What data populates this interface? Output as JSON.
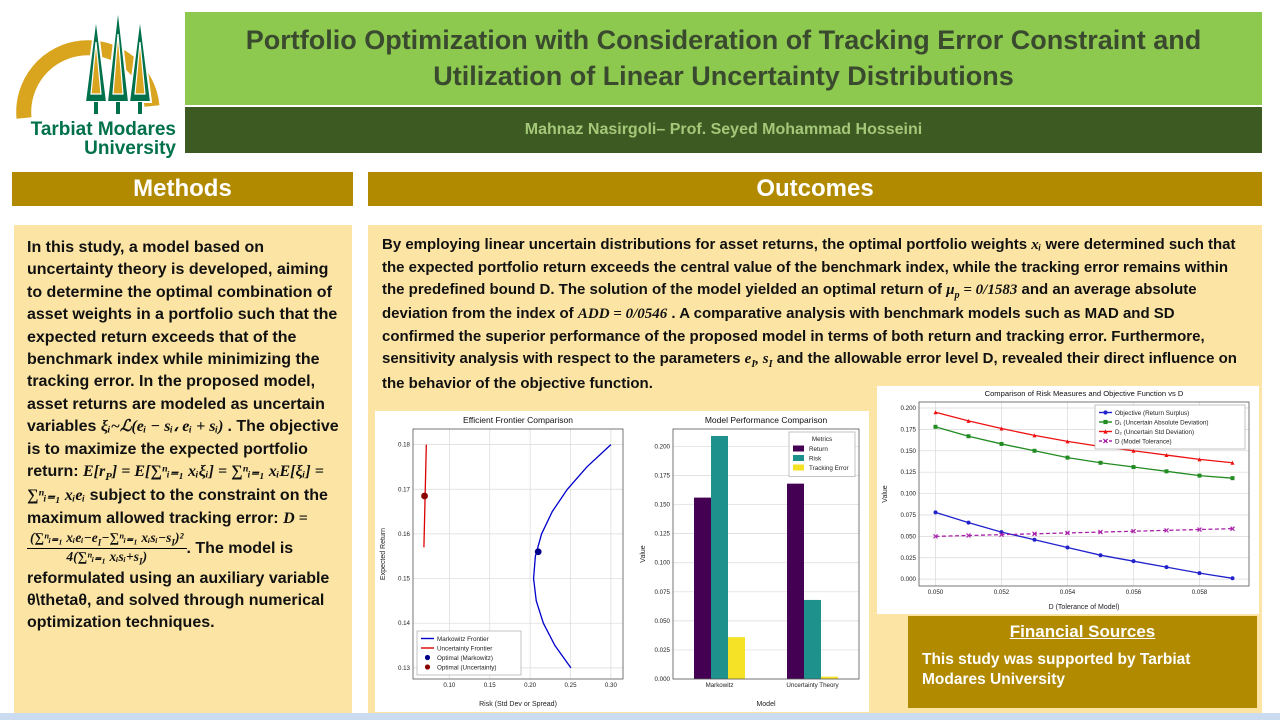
{
  "header": {
    "title_line1": "Portfolio Optimization with Consideration of Tracking Error Constraint and",
    "title_line2": "Utilization of Linear Uncertainty Distributions",
    "authors": "Mahnaz Nasirgoli– Prof. Seyed Mohammad Hosseini",
    "logo_line1": "Tarbiat Modares",
    "logo_line2": "University"
  },
  "colors": {
    "title_band": "#8dc94f",
    "author_band": "#3e5a23",
    "gold": "#b18a00",
    "panel_cream": "#fce5a4",
    "footer_bar": "#ccdcf0",
    "logo_green": "#00714a",
    "logo_gold": "#d9a41e"
  },
  "methods": {
    "heading": "Methods",
    "segments": [
      {
        "t": "In this study, a model based on uncertainty theory is developed, aiming to determine the optimal combination of asset weights in a portfolio such that the expected return exceeds that of the benchmark index while minimizing the tracking error. In the proposed model, asset returns are modeled as uncertain variables "
      },
      {
        "t": "ξᵢ~ℒ(eᵢ − sᵢ، eᵢ + sᵢ) ",
        "m": 1
      },
      {
        "t": ". The objective is to maximize the expected portfolio return: "
      },
      {
        "t": "E[r",
        "m": 1,
        "sub": "P"
      },
      {
        "t": "] = E[∑ⁿᵢ₌₁ xᵢξᵢ] = ∑ⁿᵢ₌₁ xᵢE[ξᵢ] = ∑ⁿᵢ₌₁ xᵢeᵢ",
        "m": 1
      },
      {
        "t": " subject to the constraint on the maximum allowed tracking error: "
      },
      {
        "t": "D = ",
        "m": 1
      },
      {
        "frac": {
          "num": [
            {
              "t": "(∑ⁿᵢ₌₁ xᵢeᵢ−e",
              "m": 1,
              "sub": "I"
            },
            {
              "t": "−∑ⁿᵢ₌₁ xᵢsᵢ−s",
              "m": 1,
              "sub": "I"
            },
            {
              "t": ")²",
              "m": 1
            }
          ],
          "den": [
            {
              "t": "4(∑ⁿᵢ₌₁ xᵢsᵢ+s",
              "m": 1,
              "sub": "I"
            },
            {
              "t": ")",
              "m": 1
            }
          ]
        }
      },
      {
        "t": ". The model is reformulated using an auxiliary variable θ\\thetaθ, and solved through numerical optimization techniques."
      }
    ]
  },
  "outcomes": {
    "heading": "Outcomes",
    "segments": [
      {
        "t": "By employing linear uncertain distributions for asset returns, the optimal portfolio weights "
      },
      {
        "t": "xᵢ",
        "m": 1
      },
      {
        "t": " were determined such that the expected portfolio return exceeds the central value of the benchmark index, while the tracking error remains within the predefined bound D. The solution of the model yielded an optimal return of "
      },
      {
        "t": "μ",
        "m": 1,
        "sub": "p"
      },
      {
        "t": " = 0/1583",
        "m": 1
      },
      {
        "t": "  and an average absolute deviation from the index of "
      },
      {
        "t": "ADD = 0/0546",
        "m": 1
      },
      {
        "t": " . A comparative analysis with benchmark models such as MAD and SD confirmed the superior performance of the proposed model in terms of both return and tracking error. Furthermore, sensitivity analysis with respect to the parameters "
      },
      {
        "t": "e",
        "m": 1,
        "sub": "I"
      },
      {
        "t": ", ",
        "m": 1
      },
      {
        "t": "s",
        "m": 1,
        "sub": "I"
      },
      {
        "t": " and the allowable error level D, revealed their direct influence on the behavior of the objective function."
      }
    ]
  },
  "financial": {
    "heading": "Financial  Sources",
    "body": "This study was supported by Tarbiat Modares University"
  },
  "chart_data": [
    {
      "type": "scatter",
      "title": "Efficient Frontier Comparison",
      "xlabel": "Risk (Std Dev or Spread)",
      "ylabel": "Expected Return",
      "xlim": [
        0.055,
        0.315
      ],
      "ylim": [
        0.1275,
        0.1835
      ],
      "xticks": [
        0.1,
        0.15,
        0.2,
        0.25,
        0.3
      ],
      "yticks": [
        0.13,
        0.14,
        0.15,
        0.16,
        0.17,
        0.18
      ],
      "grid": true,
      "legend_position": "lower-left",
      "series": [
        {
          "name": "Markowitz Frontier",
          "kind": "line",
          "color": "#0000cc",
          "points": [
            [
              0.2505,
              0.13
            ],
            [
              0.2307,
              0.135
            ],
            [
              0.2164,
              0.14
            ],
            [
              0.2076,
              0.145
            ],
            [
              0.2043,
              0.15
            ],
            [
              0.2065,
              0.155
            ],
            [
              0.2142,
              0.16
            ],
            [
              0.2274,
              0.165
            ],
            [
              0.2461,
              0.17
            ],
            [
              0.2703,
              0.175
            ],
            [
              0.3,
              0.18
            ]
          ]
        },
        {
          "name": "Uncertainty Frontier",
          "kind": "line",
          "color": "#dd0000",
          "points": [
            [
              0.0685,
              0.157
            ],
            [
              0.0715,
              0.18
            ]
          ]
        },
        {
          "name": "Optimal (Markowitz)",
          "kind": "point",
          "color": "#00008b",
          "points": [
            [
              0.21,
              0.156
            ]
          ]
        },
        {
          "name": "Optimal (Uncertainty)",
          "kind": "point",
          "color": "#8b0000",
          "points": [
            [
              0.0693,
              0.1685
            ]
          ]
        }
      ]
    },
    {
      "type": "bar",
      "title": "Model Performance Comparison",
      "xlabel": "Model",
      "ylabel": "Value",
      "categories": [
        "Markowitz",
        "Uncertainty Theory"
      ],
      "ylim": [
        0,
        0.215
      ],
      "yticks": [
        0.0,
        0.025,
        0.05,
        0.075,
        0.1,
        0.125,
        0.15,
        0.175,
        0.2
      ],
      "grid": true,
      "legend_title": "Metrics",
      "legend_position": "upper-right",
      "series": [
        {
          "name": "Return",
          "color": "#440154",
          "values": [
            0.156,
            0.168
          ]
        },
        {
          "name": "Risk",
          "color": "#1f918c",
          "values": [
            0.209,
            0.068
          ]
        },
        {
          "name": "Tracking Error",
          "color": "#f5e226",
          "values": [
            0.036,
            0.002
          ]
        }
      ]
    },
    {
      "type": "line",
      "title": "Comparison of Risk Measures and Objective Function vs D",
      "xlabel": "D (Tolerance of Model)",
      "ylabel": "Value",
      "x": [
        0.05,
        0.051,
        0.052,
        0.053,
        0.054,
        0.055,
        0.056,
        0.057,
        0.058,
        0.059
      ],
      "xlim": [
        0.0495,
        0.0595
      ],
      "ylim": [
        -0.008,
        0.207
      ],
      "xticks": [
        0.05,
        0.052,
        0.054,
        0.056,
        0.058
      ],
      "yticks": [
        0.0,
        0.025,
        0.05,
        0.075,
        0.1,
        0.125,
        0.15,
        0.175,
        0.2
      ],
      "grid": true,
      "legend_position": "upper-right",
      "series": [
        {
          "name": "Objective (Return Surplus)",
          "color": "#2222cc",
          "marker": "circle",
          "values": [
            0.078,
            0.066,
            0.055,
            0.046,
            0.037,
            0.028,
            0.021,
            0.014,
            0.007,
            0.001
          ]
        },
        {
          "name": "D₁ (Uncertain Absolute Deviation)",
          "color": "#228b22",
          "marker": "square",
          "values": [
            0.178,
            0.167,
            0.158,
            0.15,
            0.142,
            0.136,
            0.131,
            0.126,
            0.121,
            0.118
          ]
        },
        {
          "name": "D₂ (Uncertain Std Deviation)",
          "color": "#ee1111",
          "marker": "triangle",
          "values": [
            0.195,
            0.185,
            0.176,
            0.168,
            0.161,
            0.155,
            0.15,
            0.145,
            0.14,
            0.136
          ]
        },
        {
          "name": "D (Model Tolerance)",
          "color": "#aa22aa",
          "marker": "x",
          "dashed": true,
          "values": [
            0.05,
            0.051,
            0.052,
            0.053,
            0.054,
            0.055,
            0.056,
            0.057,
            0.058,
            0.059
          ]
        }
      ]
    }
  ]
}
